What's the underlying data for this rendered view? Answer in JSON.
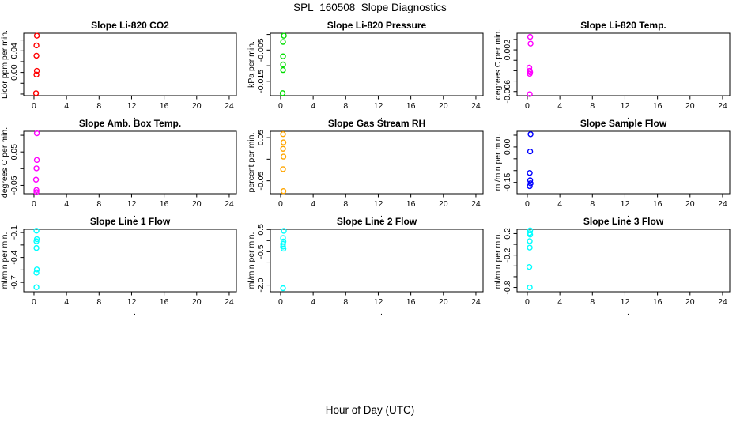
{
  "chart_data": {
    "type": "scatter",
    "title": "SPL_160508  Slope Diagnostics",
    "xlabel": "Hour of Day (UTC)",
    "grid": [
      3,
      3
    ],
    "x_ticks": [
      0,
      4,
      8,
      12,
      16,
      20,
      24
    ],
    "xlim": [
      -1.26,
      24.88
    ],
    "legend": "none",
    "plots": [
      {
        "title": "Slope Li-820 CO2",
        "ylabel": "Licor ppm per min.",
        "xlabel": ".",
        "color": "#FF0000",
        "ylim": [
          -0.043,
          0.0726
        ],
        "yticks": [
          {
            "v": 0.06,
            "label": ""
          },
          {
            "v": 0.04,
            "label": "0.04"
          },
          {
            "v": 0.02,
            "label": ""
          },
          {
            "v": 0.0,
            "label": "0.00"
          },
          {
            "v": -0.02,
            "label": ""
          },
          {
            "v": -0.04,
            "label": ""
          }
        ],
        "x": [
          0.35,
          0.3,
          0.3,
          0.35,
          0.3,
          0.25
        ],
        "y": [
          0.068,
          0.05,
          0.031,
          0.003,
          -0.004,
          -0.0385
        ]
      },
      {
        "title": "Slope Li-820 Pressure",
        "ylabel": "kPa per min.",
        "xlabel": ".",
        "color": "#00DD00",
        "ylim": [
          -0.0196,
          0.0004
        ],
        "yticks": [
          {
            "v": 0.0,
            "label": ""
          },
          {
            "v": -0.005,
            "label": "-0.005"
          },
          {
            "v": -0.01,
            "label": ""
          },
          {
            "v": -0.015,
            "label": "-0.015"
          }
        ],
        "x": [
          0.4,
          0.3,
          0.3,
          0.3,
          0.3,
          0.25
        ],
        "y": [
          -0.0004,
          -0.0024,
          -0.007,
          -0.0096,
          -0.0114,
          -0.0188
        ]
      },
      {
        "title": "Slope Li-820 Temp.",
        "ylabel": "degrees C per min.",
        "xlabel": ".",
        "color": "#FF00FF",
        "ylim": [
          -0.0068,
          0.0052
        ],
        "yticks": [
          {
            "v": 0.004,
            "label": ""
          },
          {
            "v": 0.002,
            "label": "0.002"
          },
          {
            "v": 0.0,
            "label": ""
          },
          {
            "v": -0.002,
            "label": ""
          },
          {
            "v": -0.004,
            "label": ""
          },
          {
            "v": -0.006,
            "label": "-0.006"
          }
        ],
        "x": [
          0.35,
          0.4,
          0.25,
          0.3,
          0.35,
          0.3,
          0.3
        ],
        "y": [
          0.0045,
          0.0032,
          -0.0014,
          -0.002,
          -0.0023,
          -0.0026,
          -0.0065
        ]
      },
      {
        "title": "Slope Amb. Box Temp.",
        "ylabel": "degrees C per min.",
        "xlabel": ".",
        "color": "#FF00FF",
        "ylim": [
          -0.075,
          0.112
        ],
        "yticks": [
          {
            "v": 0.1,
            "label": ""
          },
          {
            "v": 0.05,
            "label": "0.05"
          },
          {
            "v": 0.0,
            "label": ""
          },
          {
            "v": -0.05,
            "label": "-0.05"
          }
        ],
        "x": [
          0.35,
          0.35,
          0.3,
          0.25,
          0.3,
          0.3
        ],
        "y": [
          0.106,
          0.026,
          0.001,
          -0.033,
          -0.064,
          -0.07
        ]
      },
      {
        "title": "Slope Gas Stream RH",
        "ylabel": "percent per min.",
        "xlabel": ".",
        "color": "#FFA500",
        "ylim": [
          -0.08,
          0.0648
        ],
        "yticks": [
          {
            "v": 0.05,
            "label": "0.05"
          },
          {
            "v": 0.0,
            "label": ""
          },
          {
            "v": -0.05,
            "label": "-0.05"
          }
        ],
        "x": [
          0.3,
          0.35,
          0.3,
          0.35,
          0.3,
          0.35
        ],
        "y": [
          0.058,
          0.039,
          0.024,
          0.006,
          -0.023,
          -0.074
        ]
      },
      {
        "title": "Slope Sample Flow",
        "ylabel": "ml/min per min.",
        "xlabel": ".",
        "color": "#0000FF",
        "ylim": [
          -0.198,
          0.0667
        ],
        "yticks": [
          {
            "v": 0.05,
            "label": ""
          },
          {
            "v": 0.0,
            "label": "0.00"
          },
          {
            "v": -0.05,
            "label": ""
          },
          {
            "v": -0.1,
            "label": ""
          },
          {
            "v": -0.15,
            "label": "-0.15"
          }
        ],
        "x": [
          0.4,
          0.35,
          0.3,
          0.35,
          0.4,
          0.3
        ],
        "y": [
          0.054,
          -0.019,
          -0.11,
          -0.141,
          -0.154,
          -0.166
        ]
      },
      {
        "title": "Slope Line 1 Flow",
        "ylabel": "ml/min per min.",
        "xlabel": ".",
        "color": "#00FFFF",
        "ylim": [
          -0.813,
          -0.061
        ],
        "yticks": [
          {
            "v": -0.1,
            "label": "-0.1"
          },
          {
            "v": -0.25,
            "label": ""
          },
          {
            "v": -0.4,
            "label": "-0.4"
          },
          {
            "v": -0.55,
            "label": ""
          },
          {
            "v": -0.7,
            "label": "-0.7"
          }
        ],
        "x": [
          0.3,
          0.35,
          0.3,
          0.3,
          0.35,
          0.3,
          0.3
        ],
        "y": [
          -0.078,
          -0.18,
          -0.205,
          -0.286,
          -0.545,
          -0.585,
          -0.758
        ]
      },
      {
        "title": "Slope Line 2 Flow",
        "ylabel": "ml/min per min.",
        "xlabel": ".",
        "color": "#00FFFF",
        "ylim": [
          -2.3,
          0.51
        ],
        "yticks": [
          {
            "v": 0.5,
            "label": "0.5"
          },
          {
            "v": 0.0,
            "label": ""
          },
          {
            "v": -0.5,
            "label": "-0.5"
          },
          {
            "v": -1.0,
            "label": ""
          },
          {
            "v": -1.5,
            "label": ""
          },
          {
            "v": -2.0,
            "label": "-2.0"
          }
        ],
        "x": [
          0.4,
          0.3,
          0.35,
          0.3,
          0.3,
          0.35,
          0.3
        ],
        "y": [
          0.44,
          0.12,
          -0.04,
          -0.15,
          -0.27,
          -0.36,
          -2.14
        ]
      },
      {
        "title": "Slope Line 3 Flow",
        "ylabel": "ml/min per min.",
        "xlabel": ".",
        "color": "#00FFFF",
        "ylim": [
          -0.88,
          0.28
        ],
        "yticks": [
          {
            "v": 0.2,
            "label": "0.2"
          },
          {
            "v": 0.0,
            "label": ""
          },
          {
            "v": -0.2,
            "label": "-0.2"
          },
          {
            "v": -0.4,
            "label": ""
          },
          {
            "v": -0.6,
            "label": ""
          },
          {
            "v": -0.8,
            "label": "-0.8"
          }
        ],
        "x": [
          0.35,
          0.3,
          0.35,
          0.3,
          0.3,
          0.25,
          0.3
        ],
        "y": [
          0.26,
          0.21,
          0.18,
          0.06,
          -0.06,
          -0.42,
          -0.8
        ]
      }
    ]
  }
}
